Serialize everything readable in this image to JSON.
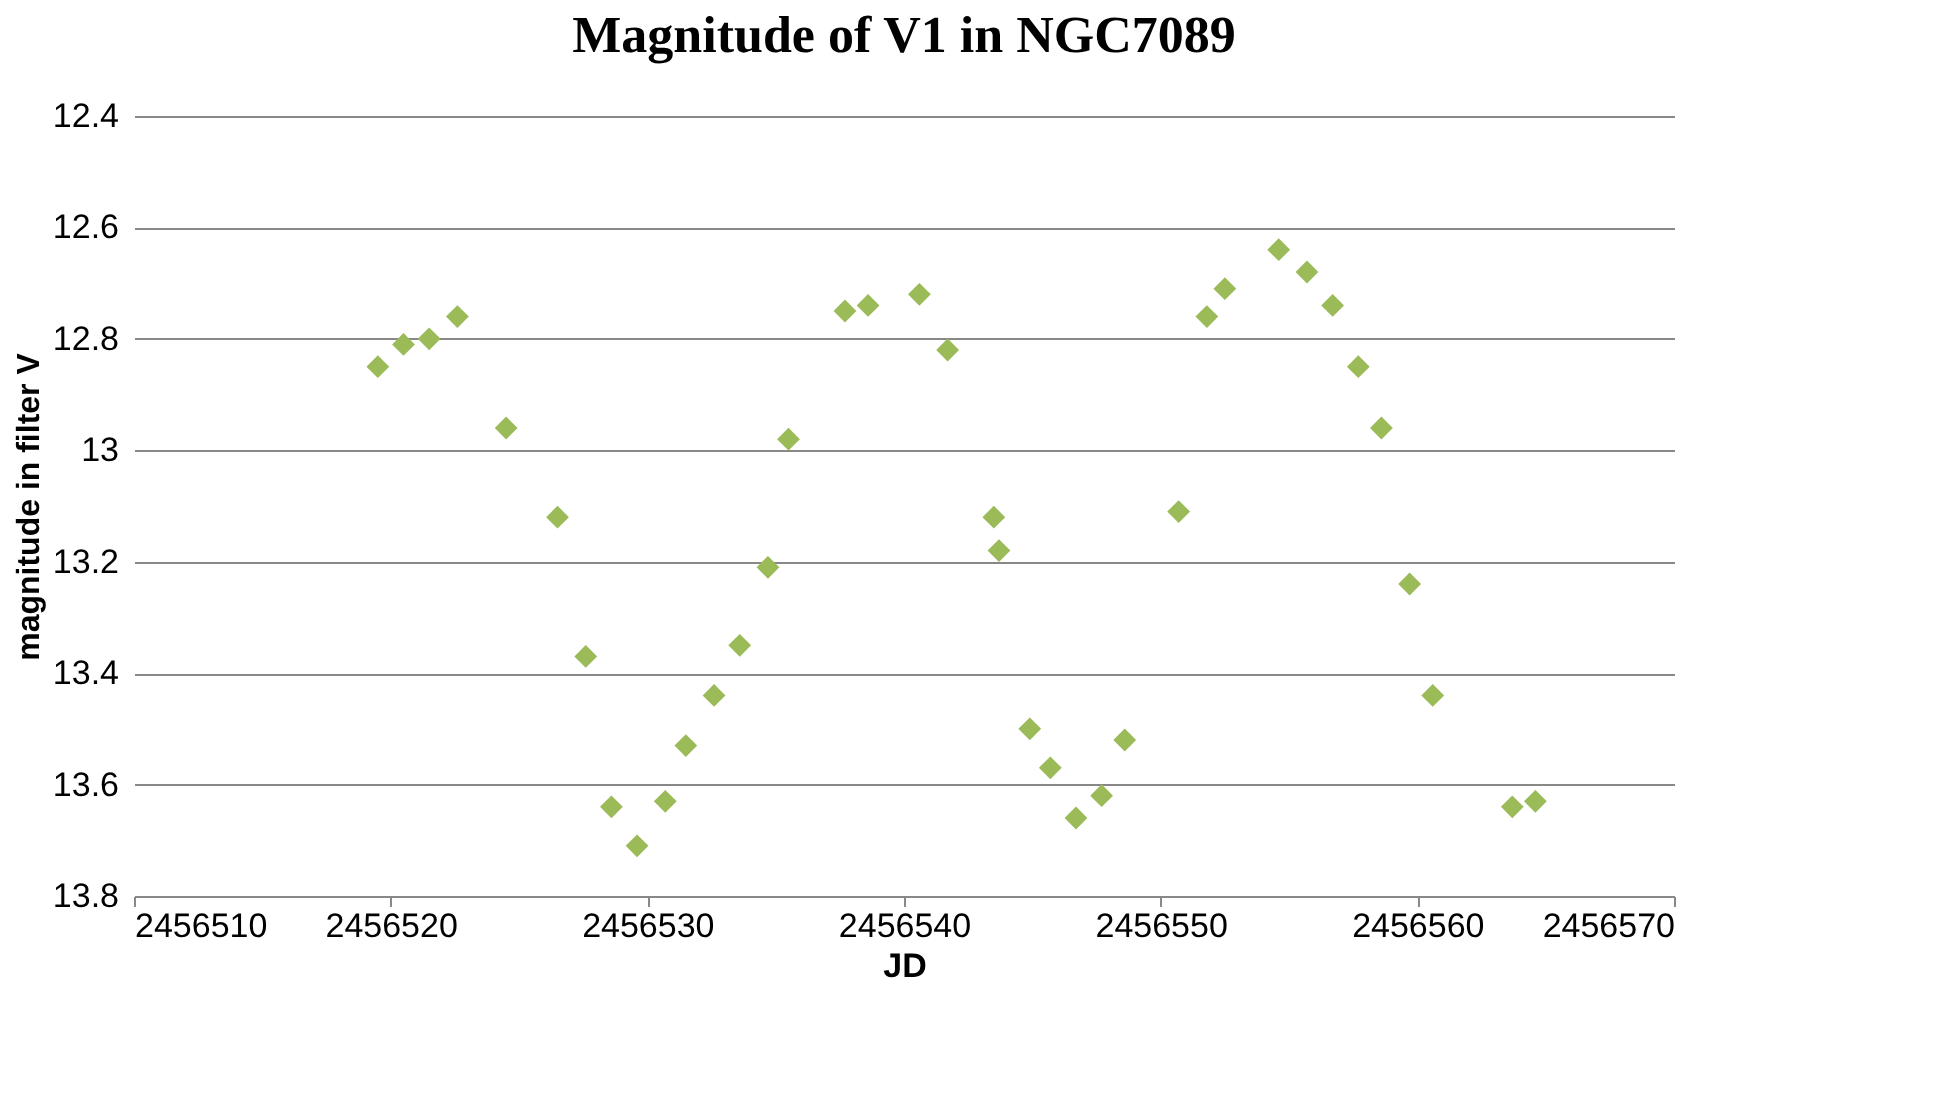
{
  "chart_data": {
    "type": "scatter",
    "title": "Magnitude of V1 in NGC7089",
    "xlabel": "JD",
    "ylabel": "magnitude in filter V",
    "x": [
      2456519.5,
      2456520.5,
      2456521.5,
      2456522.6,
      2456524.5,
      2456526.5,
      2456527.6,
      2456528.6,
      2456529.6,
      2456530.7,
      2456531.5,
      2456532.6,
      2456533.6,
      2456534.7,
      2456535.5,
      2456537.7,
      2456538.6,
      2456540.6,
      2456541.7,
      2456543.5,
      2456543.7,
      2456544.9,
      2456545.7,
      2456546.7,
      2456547.7,
      2456548.6,
      2456550.7,
      2456551.8,
      2456552.5,
      2456554.6,
      2456555.7,
      2456556.7,
      2456557.7,
      2456558.6,
      2456559.7,
      2456560.6,
      2456563.7,
      2456564.6
    ],
    "series": [
      {
        "color": "#9bbb59",
        "values": [
          12.85,
          12.81,
          12.8,
          12.76,
          12.96,
          13.12,
          13.37,
          13.64,
          13.71,
          13.63,
          13.53,
          13.44,
          13.35,
          13.21,
          12.98,
          12.75,
          12.74,
          12.72,
          12.82,
          13.12,
          13.18,
          13.5,
          13.57,
          13.66,
          13.62,
          13.52,
          13.11,
          12.76,
          12.71,
          12.64,
          12.68,
          12.74,
          12.85,
          12.96,
          13.24,
          13.44,
          13.64,
          13.63
        ]
      }
    ],
    "xlim": [
      2456510,
      2456570
    ],
    "xticks": [
      2456510,
      2456520,
      2456530,
      2456540,
      2456550,
      2456560,
      2456570
    ],
    "ylim": [
      13.8,
      12.4
    ],
    "yticks": [
      12.4,
      12.6,
      12.8,
      13,
      13.2,
      13.4,
      13.6,
      13.8
    ],
    "grid": "y",
    "marker": "diamond"
  }
}
